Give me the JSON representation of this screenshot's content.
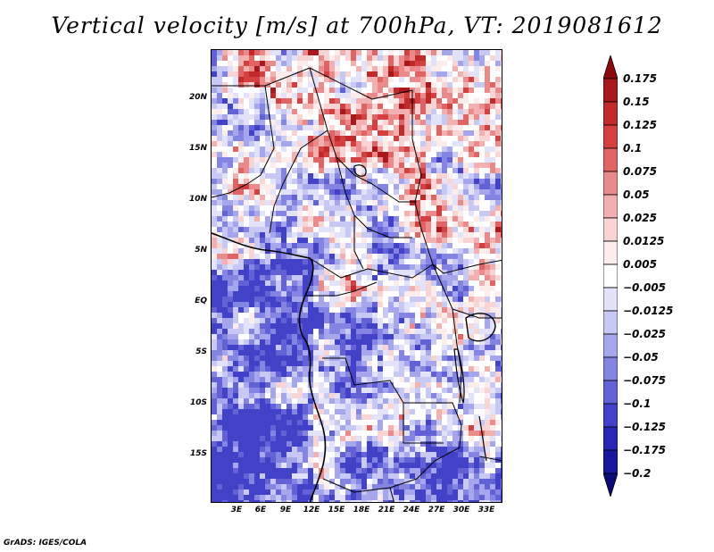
{
  "title": "Vertical velocity [m/s] at 700hPa, VT: 2019081612",
  "footer": "GrADS: IGES/COLA",
  "map": {
    "lat_ticks": [
      "20N",
      "15N",
      "10N",
      "5N",
      "EQ",
      "5S",
      "10S",
      "15S"
    ],
    "lon_ticks": [
      "3E",
      "6E",
      "9E",
      "12E",
      "15E",
      "18E",
      "21E",
      "24E",
      "27E",
      "30E",
      "33E"
    ]
  },
  "colorbar": {
    "labels": [
      "0.175",
      "0.15",
      "0.125",
      "0.1",
      "0.075",
      "0.05",
      "0.025",
      "0.0125",
      "0.005",
      "−0.005",
      "−0.0125",
      "−0.025",
      "−0.05",
      "−0.075",
      "−0.1",
      "−0.125",
      "−0.175",
      "−0.2"
    ],
    "colors": [
      "#8b0a0e",
      "#a8181c",
      "#c02a2a",
      "#d44040",
      "#e06464",
      "#ea8a8a",
      "#f3b0b0",
      "#f9d4d4",
      "#fdecec",
      "#ffffff",
      "#e2e2fa",
      "#c8c8f4",
      "#a6a6ec",
      "#8484e2",
      "#6262d6",
      "#4242c8",
      "#2828b4",
      "#18189c",
      "#0c0c78"
    ]
  }
}
